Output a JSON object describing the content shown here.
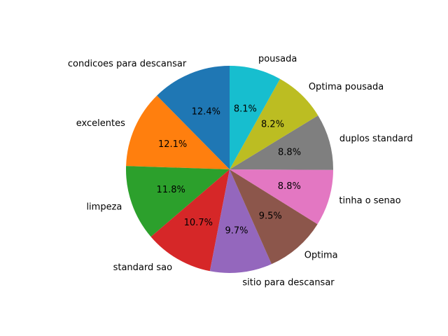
{
  "chart_data": {
    "type": "pie",
    "start_angle_deg": 90,
    "direction": "counterclockwise",
    "slices": [
      {
        "label": "condicoes para descansar",
        "value": 12.4,
        "pct_label": "12.4%",
        "color": "#1f77b4"
      },
      {
        "label": "excelentes",
        "value": 12.1,
        "pct_label": "12.1%",
        "color": "#ff7f0e"
      },
      {
        "label": "limpeza",
        "value": 11.8,
        "pct_label": "11.8%",
        "color": "#2ca02c"
      },
      {
        "label": "standard sao",
        "value": 10.7,
        "pct_label": "10.7%",
        "color": "#d62728"
      },
      {
        "label": "sitio para descansar",
        "value": 9.7,
        "pct_label": "9.7%",
        "color": "#9467bd"
      },
      {
        "label": "Optima",
        "value": 9.5,
        "pct_label": "9.5%",
        "color": "#8c564b"
      },
      {
        "label": "tinha o senao",
        "value": 8.8,
        "pct_label": "8.8%",
        "color": "#e377c2"
      },
      {
        "label": "duplos standard",
        "value": 8.8,
        "pct_label": "8.8%",
        "color": "#7f7f7f"
      },
      {
        "label": "Optima pousada",
        "value": 8.2,
        "pct_label": "8.2%",
        "color": "#bcbd22"
      },
      {
        "label": "pousada",
        "value": 8.1,
        "pct_label": "8.1%",
        "color": "#17becf"
      }
    ]
  }
}
